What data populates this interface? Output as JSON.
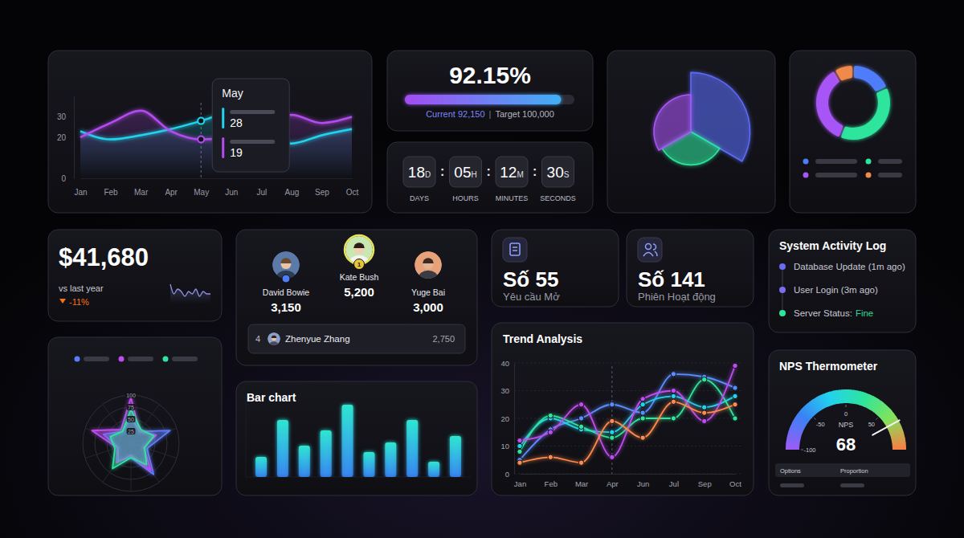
{
  "chart_data": [
    {
      "type": "area",
      "categories": [
        "Jan",
        "Feb",
        "Mar",
        "Apr",
        "May",
        "Jun",
        "Jul",
        "Aug",
        "Sep",
        "Oct"
      ],
      "series": [
        {
          "color": "#22d3ee",
          "values": [
            23,
            19,
            21,
            24,
            28,
            32,
            22,
            17,
            21,
            24
          ]
        },
        {
          "color": "#b44cf0",
          "values": [
            20,
            27,
            33,
            23,
            19,
            20,
            26,
            31,
            27,
            30
          ]
        }
      ],
      "ylim": [
        0,
        40
      ],
      "yticks": [
        0,
        20,
        30
      ],
      "tooltip": {
        "category": "May",
        "values": [
          28,
          19
        ]
      }
    },
    {
      "type": "polar_area",
      "values": [
        80,
        45,
        50
      ],
      "colors": [
        "#5b6cf9",
        "#2ee59d",
        "#a855f7"
      ],
      "ylim": [
        0,
        100
      ],
      "tick_labels": false
    },
    {
      "type": "donut",
      "values": [
        18,
        38,
        36,
        8
      ],
      "colors": [
        "#4f7df9",
        "#2ee59d",
        "#a855f7",
        "#f08a4b"
      ],
      "legend": "bottom"
    },
    {
      "type": "radar",
      "categories": [
        null,
        null,
        null,
        null,
        null,
        null,
        null,
        null,
        null,
        null
      ],
      "series": [
        {
          "color": "#5b7cfa",
          "values": [
            55,
            30,
            85,
            35,
            80,
            30,
            45,
            28,
            60,
            30
          ]
        },
        {
          "color": "#c04cf0",
          "values": [
            95,
            30,
            55,
            28,
            70,
            25,
            50,
            30,
            85,
            35
          ]
        },
        {
          "color": "#2ee5a0",
          "values": [
            70,
            35,
            50,
            30,
            55,
            30,
            65,
            35,
            45,
            30
          ]
        }
      ],
      "ylim": [
        0,
        100
      ],
      "yticks": [
        25,
        50,
        75,
        100
      ],
      "legend": "top"
    },
    {
      "type": "bar",
      "title": "Bar chart",
      "categories": [
        null,
        null,
        null,
        null,
        null,
        null,
        null,
        null,
        null,
        null
      ],
      "values": [
        25,
        71,
        39,
        58,
        90,
        31,
        43,
        71,
        19,
        51
      ],
      "color": "#2ee6d0",
      "ylim": [
        0,
        100
      ],
      "tick_labels": false
    },
    {
      "type": "line",
      "title": "Trend Analysis",
      "categories": [
        "Jan",
        "Feb",
        "Mar",
        "Apr",
        "Jun",
        "Jul",
        "Sep",
        "Oct"
      ],
      "series": [
        {
          "color": "#5b8cff",
          "values": [
            5,
            16,
            20,
            25,
            22,
            36,
            35,
            31
          ]
        },
        {
          "color": "#22d3ee",
          "values": [
            10,
            20,
            16,
            15,
            25,
            28,
            24,
            28
          ]
        },
        {
          "color": "#2ee59d",
          "values": [
            8,
            21,
            17,
            13,
            20,
            20,
            34,
            20
          ]
        },
        {
          "color": "#c04cf0",
          "values": [
            12,
            15,
            25,
            6,
            27,
            30,
            19,
            39
          ]
        },
        {
          "color": "#ff8a4c",
          "values": [
            4,
            6,
            4,
            19,
            13,
            26,
            22,
            25
          ]
        }
      ],
      "ylim": [
        0,
        40
      ],
      "yticks": [
        0,
        10,
        20,
        30,
        40
      ],
      "marker": "circle",
      "grid": true
    },
    {
      "type": "gauge",
      "title": "NPS Thermometer",
      "label": "NPS",
      "values": [
        68
      ],
      "ylim": [
        -100,
        100
      ],
      "yticks": [
        -100,
        -50,
        0,
        50
      ]
    },
    {
      "type": "line",
      "values": [
        8,
        4,
        6,
        5,
        3,
        5,
        4,
        6,
        3,
        5,
        4,
        4
      ],
      "color": "#8f93e6",
      "ylim": [
        0,
        10
      ],
      "tick_labels": false
    }
  ],
  "widgets": {
    "progress": {
      "label": "92.15%",
      "current": 92150,
      "current_label": "Current 92,150",
      "separator": "|",
      "target": 100000,
      "target_label": "Target 100,000"
    },
    "countdown": {
      "separator": ":",
      "units": [
        {
          "value": "18",
          "unit": "D",
          "label": "DAYS"
        },
        {
          "value": "05",
          "unit": "H",
          "label": "HOURS"
        },
        {
          "value": "12",
          "unit": "M",
          "label": "MINUTES"
        },
        {
          "value": "30",
          "unit": "S",
          "label": "SECONDS"
        }
      ]
    },
    "revenue": {
      "value": "$41,680",
      "caption": "vs last year",
      "change": "-11%"
    },
    "leaderboard": {
      "podium": [
        {
          "name": "David Bowie",
          "score": "3,150"
        },
        {
          "name": "Kate Bush",
          "score": "5,200",
          "badge": "1"
        },
        {
          "name": "Yuge Bai",
          "score": "3,000"
        }
      ],
      "rows": [
        {
          "rank": "4",
          "name": "Zhenyue Zhang",
          "score": "2,750"
        }
      ]
    },
    "stats": [
      {
        "value": "Số 55",
        "label": "Yêu cầu Mở"
      },
      {
        "value": "Số 141",
        "label": "Phiên Hoạt động"
      }
    ],
    "activity": {
      "title": "System Activity Log",
      "items": [
        {
          "text": "Database Update (1m ago)",
          "color": "#6c6cf0"
        },
        {
          "text": "User Login (3m ago)",
          "color": "#7b6cf0"
        },
        {
          "text": "Server Status:",
          "status": "Fine",
          "color": "#2ee59d"
        }
      ]
    },
    "nps_table": {
      "columns": [
        "Options",
        "Proportion"
      ]
    }
  }
}
